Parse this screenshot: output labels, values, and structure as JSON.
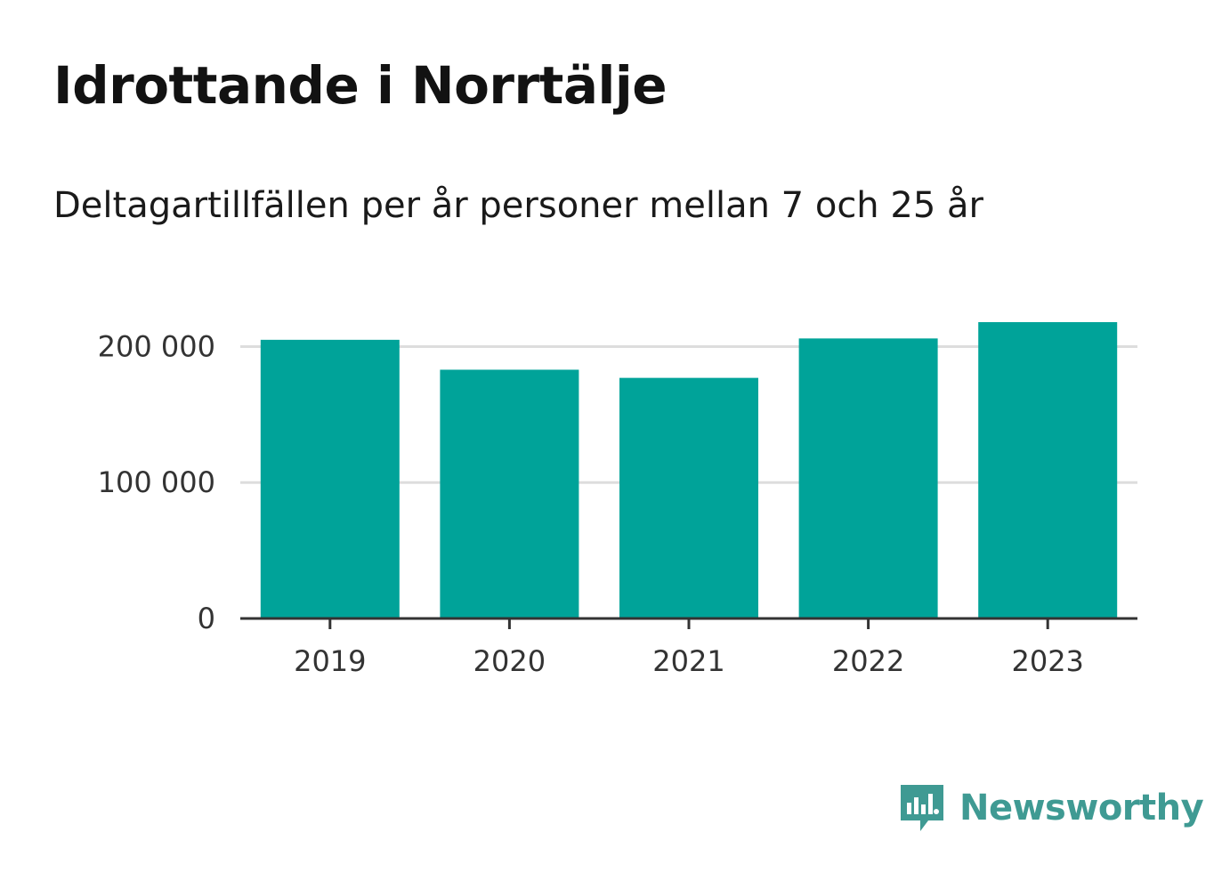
{
  "header": {
    "title": "Idrottande i Norrtälje",
    "subtitle": "Deltagartillfällen per år personer mellan 7 och 25 år"
  },
  "brand": {
    "name": "Newsworthy",
    "color": "#3f9a93"
  },
  "colors": {
    "bar": "#00a399",
    "grid": "#dddddd",
    "axis": "#333333"
  },
  "chart_data": {
    "type": "bar",
    "title": "Idrottande i Norrtälje",
    "subtitle": "Deltagartillfällen per år personer mellan 7 och 25 år",
    "xlabel": "",
    "ylabel": "",
    "categories": [
      "2019",
      "2020",
      "2021",
      "2022",
      "2023"
    ],
    "values": [
      205000,
      183000,
      177000,
      206000,
      218000
    ],
    "ylim": [
      0,
      218000
    ],
    "yticks": [
      0,
      100000,
      200000
    ],
    "ytick_labels": [
      "0",
      "100 000",
      "200 000"
    ],
    "grid": true,
    "legend": "none"
  }
}
